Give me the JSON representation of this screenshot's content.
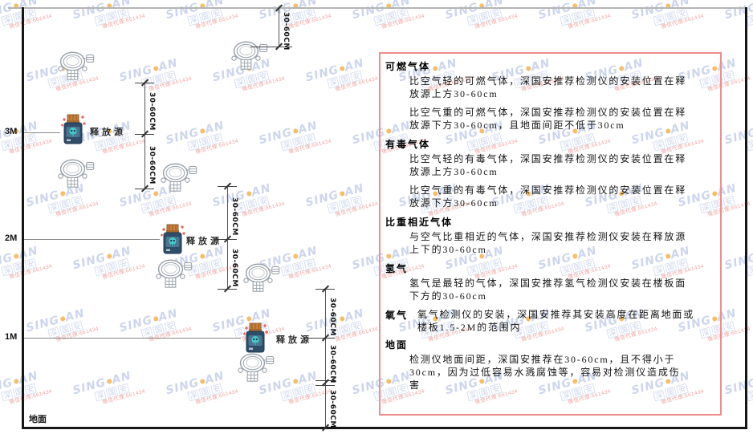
{
  "diagram": {
    "axis_labels": {
      "m3": "3M",
      "m2": "2M",
      "m1": "1M",
      "ground": "地面"
    },
    "release_source_label": "释放源",
    "dimension_label": "30-60CM"
  },
  "panel": {
    "sections": [
      {
        "heading": "可燃气体",
        "paragraphs": [
          "比空气轻的可燃气体，深国安推荐检测仪的安装位置在释放源上方30-60cm",
          "比空气重的可燃气体，深国安推荐检测仪的安装位置在释放源下方30-60cm，且地面间距不低于30cm"
        ]
      },
      {
        "heading": "有毒气体",
        "paragraphs": [
          "比空气轻的有毒气体，深国安推荐检测仪的安装位置在释放源上方30-60cm",
          "比空气重的有毒气体，深国安推荐检测仪的安装位置在释放源下方30-60cm"
        ]
      },
      {
        "heading": "比重相近气体",
        "paragraphs": [
          "与空气比重相近的气体，深国安推荐检测仪安装在释放源上下的30-60cm"
        ]
      },
      {
        "heading": "氢气",
        "paragraphs": [
          "氢气是最轻的气体，深国安推荐氢气检测仪安装在楼板面下方的30-60cm"
        ]
      },
      {
        "heading": "氧气",
        "inline": true,
        "paragraphs": [
          "氧气检测仪的安装，深国安推荐其安装高度在距离地面或楼板1.5-2M的范围内"
        ]
      },
      {
        "heading": "地面",
        "paragraphs": [
          "检测仪地面间距，深国安推荐在30-60cm，且不得小于30cm，因为过低容易水溅腐蚀等，容易对检测仪造成伤害"
        ]
      }
    ]
  },
  "watermark": {
    "brand_left": "SING",
    "brand_right": "AN",
    "cn": "深国安",
    "agent_line": "微信代理:661434"
  },
  "colors": {
    "panel_border": "#f08c8c",
    "watermark_blue": "#8298d2",
    "watermark_dot": "#f0a838",
    "source_body": "#2e4d68",
    "source_panel": "#4d7490",
    "source_cap": "#c9813f",
    "source_skull": "#45c8c8",
    "detector_stroke": "#9aa2ab",
    "sparkle_red": "#e05a4e"
  }
}
